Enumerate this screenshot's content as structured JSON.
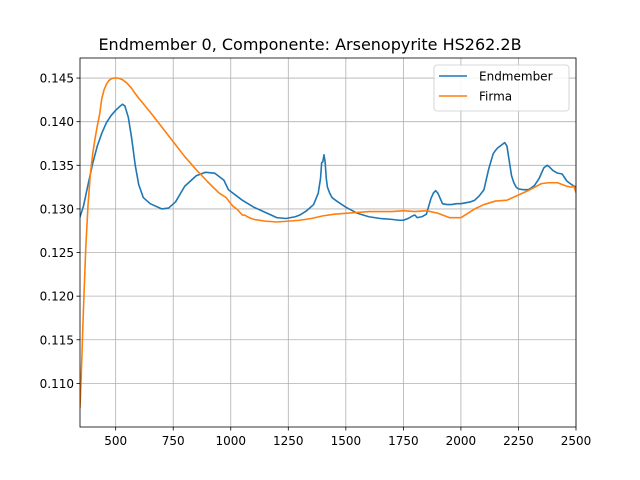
{
  "chart_data": {
    "type": "line",
    "title": "Endmember 0, Componente: Arsenopyrite HS262.2B",
    "xlabel": "",
    "ylabel": "",
    "xlim": [
      345,
      2500
    ],
    "ylim": [
      0.105,
      0.1473
    ],
    "xticks": [
      500,
      750,
      1000,
      1250,
      1500,
      1750,
      2000,
      2250,
      2500
    ],
    "yticks": [
      0.11,
      0.115,
      0.12,
      0.125,
      0.13,
      0.135,
      0.14,
      0.145
    ],
    "xtick_labels": [
      "500",
      "750",
      "1000",
      "1250",
      "1500",
      "1750",
      "2000",
      "2250",
      "2500"
    ],
    "ytick_labels": [
      "0.110",
      "0.115",
      "0.120",
      "0.125",
      "0.130",
      "0.135",
      "0.140",
      "0.145"
    ],
    "grid": true,
    "legend": "top-right",
    "series": [
      {
        "name": "Endmember",
        "color": "#1f77b4",
        "x": [
          345,
          360,
          380,
          400,
          420,
          440,
          460,
          480,
          500,
          520,
          530,
          540,
          555,
          570,
          585,
          600,
          620,
          650,
          700,
          730,
          760,
          800,
          850,
          890,
          930,
          970,
          990,
          1000,
          1050,
          1100,
          1150,
          1200,
          1240,
          1280,
          1300,
          1330,
          1360,
          1380,
          1390,
          1395,
          1400,
          1405,
          1410,
          1415,
          1420,
          1430,
          1440,
          1460,
          1500,
          1550,
          1600,
          1650,
          1700,
          1730,
          1750,
          1770,
          1790,
          1800,
          1810,
          1830,
          1850,
          1870,
          1880,
          1890,
          1900,
          1910,
          1920,
          1940,
          1960,
          1980,
          2000,
          2020,
          2040,
          2060,
          2080,
          2100,
          2120,
          2140,
          2150,
          2160,
          2180,
          2190,
          2200,
          2210,
          2220,
          2230,
          2240,
          2250,
          2270,
          2290,
          2300,
          2320,
          2340,
          2360,
          2375,
          2385,
          2400,
          2420,
          2440,
          2460,
          2480,
          2500
        ],
        "y": [
          0.1291,
          0.1303,
          0.1328,
          0.1352,
          0.1372,
          0.1387,
          0.1399,
          0.1407,
          0.1413,
          0.1418,
          0.142,
          0.1418,
          0.1405,
          0.138,
          0.135,
          0.1328,
          0.1313,
          0.1306,
          0.13,
          0.1301,
          0.1308,
          0.1326,
          0.1338,
          0.1342,
          0.1341,
          0.1333,
          0.1322,
          0.132,
          0.131,
          0.1302,
          0.1296,
          0.129,
          0.1289,
          0.1291,
          0.1293,
          0.1298,
          0.1305,
          0.1318,
          0.1335,
          0.1353,
          0.1354,
          0.1362,
          0.1354,
          0.1335,
          0.1325,
          0.1318,
          0.1313,
          0.1309,
          0.1302,
          0.1295,
          0.1291,
          0.1289,
          0.1288,
          0.1287,
          0.1287,
          0.1289,
          0.1292,
          0.1293,
          0.129,
          0.1291,
          0.1294,
          0.1312,
          0.1318,
          0.1321,
          0.1318,
          0.1312,
          0.1306,
          0.1305,
          0.1305,
          0.1306,
          0.1306,
          0.1307,
          0.1308,
          0.131,
          0.1315,
          0.1322,
          0.1345,
          0.1363,
          0.1367,
          0.137,
          0.1374,
          0.1376,
          0.1372,
          0.1355,
          0.1338,
          0.133,
          0.1325,
          0.1323,
          0.1322,
          0.1322,
          0.1323,
          0.1327,
          0.1335,
          0.1347,
          0.135,
          0.1348,
          0.1344,
          0.1341,
          0.134,
          0.1332,
          0.1328,
          0.1325
        ]
      },
      {
        "name": "Firma",
        "color": "#ff7f0e",
        "x": [
          345,
          350,
          360,
          370,
          380,
          390,
          400,
          410,
          420,
          430,
          440,
          450,
          460,
          470,
          480,
          490,
          500,
          510,
          520,
          530,
          540,
          550,
          560,
          570,
          580,
          600,
          650,
          700,
          750,
          800,
          850,
          900,
          950,
          980,
          1000,
          1010,
          1020,
          1030,
          1040,
          1050,
          1060,
          1080,
          1100,
          1150,
          1200,
          1250,
          1300,
          1350,
          1400,
          1450,
          1500,
          1550,
          1600,
          1650,
          1700,
          1750,
          1800,
          1850,
          1900,
          1950,
          2000,
          2030,
          2060,
          2100,
          2150,
          2200,
          2250,
          2300,
          2350,
          2380,
          2400,
          2420,
          2440,
          2460,
          2480,
          2490,
          2500
        ],
        "y": [
          0.1073,
          0.1105,
          0.1185,
          0.1255,
          0.1305,
          0.134,
          0.1363,
          0.138,
          0.1395,
          0.1408,
          0.1427,
          0.1437,
          0.1443,
          0.1447,
          0.1449,
          0.145,
          0.145,
          0.145,
          0.1449,
          0.1448,
          0.1446,
          0.1444,
          0.1441,
          0.1438,
          0.1434,
          0.1427,
          0.1411,
          0.1394,
          0.1377,
          0.136,
          0.1345,
          0.1331,
          0.1318,
          0.1313,
          0.1306,
          0.1303,
          0.1301,
          0.1299,
          0.1296,
          0.1293,
          0.1293,
          0.129,
          0.1288,
          0.1286,
          0.1285,
          0.1286,
          0.1287,
          0.1289,
          0.1292,
          0.1294,
          0.1295,
          0.1296,
          0.1297,
          0.1297,
          0.1297,
          0.1298,
          0.1297,
          0.1298,
          0.1295,
          0.129,
          0.129,
          0.1295,
          0.13,
          0.1305,
          0.1309,
          0.131,
          0.1316,
          0.1322,
          0.1329,
          0.133,
          0.133,
          0.133,
          0.1328,
          0.1326,
          0.1325,
          0.1326,
          0.1319
        ]
      }
    ]
  }
}
